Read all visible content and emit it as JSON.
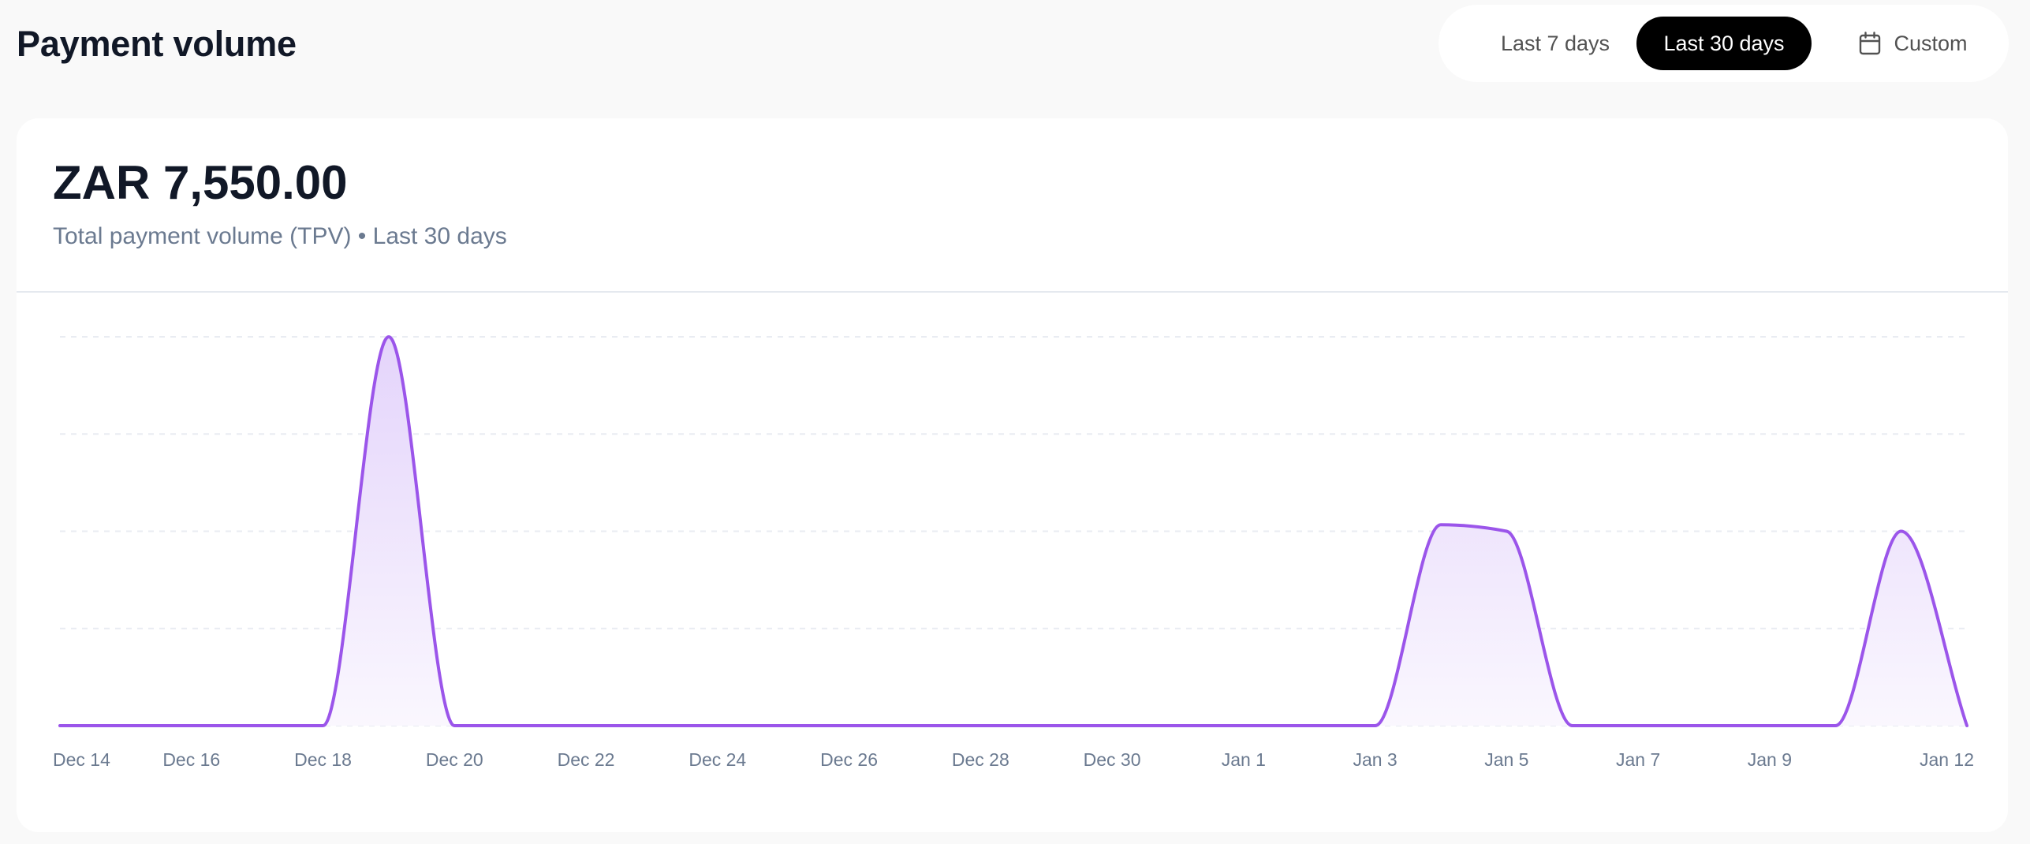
{
  "header": {
    "title": "Payment volume"
  },
  "range_switch": {
    "options": [
      {
        "label": "Last 7 days",
        "selected": false
      },
      {
        "label": "Last 30 days",
        "selected": true
      },
      {
        "label": "Custom",
        "selected": false,
        "icon": "calendar-icon"
      }
    ]
  },
  "summary": {
    "amount": "ZAR 7,550.00",
    "subtitle": "Total payment volume (TPV) • Last 30 days"
  },
  "colors": {
    "line": "#9b55ea",
    "fill_top": "#e4d4fb",
    "fill_bottom": "#faf7fe",
    "grid": "#e9ecf2",
    "tick_text": "#6b7a90",
    "selected_bg": "#000000"
  },
  "chart_data": {
    "type": "area",
    "title": "",
    "xlabel": "",
    "ylabel": "",
    "x": [
      "Dec 14",
      "Dec 15",
      "Dec 16",
      "Dec 17",
      "Dec 18",
      "Dec 19",
      "Dec 20",
      "Dec 21",
      "Dec 22",
      "Dec 23",
      "Dec 24",
      "Dec 25",
      "Dec 26",
      "Dec 27",
      "Dec 28",
      "Dec 29",
      "Dec 30",
      "Dec 31",
      "Jan 1",
      "Jan 2",
      "Jan 3",
      "Jan 4",
      "Jan 5",
      "Jan 6",
      "Jan 7",
      "Jan 8",
      "Jan 9",
      "Jan 10",
      "Jan 11",
      "Jan 12"
    ],
    "series": [
      {
        "name": "Payment volume (ZAR)",
        "values": [
          0,
          0,
          0,
          0,
          0,
          3000,
          0,
          0,
          0,
          0,
          0,
          0,
          0,
          0,
          0,
          0,
          0,
          0,
          0,
          0,
          0,
          1550,
          1500,
          0,
          0,
          0,
          0,
          0,
          1500,
          0
        ]
      }
    ],
    "tick_labels": [
      "Dec 14",
      "Dec 16",
      "Dec 18",
      "Dec 20",
      "Dec 22",
      "Dec 24",
      "Dec 26",
      "Dec 28",
      "Dec 30",
      "Jan 1",
      "Jan 3",
      "Jan 5",
      "Jan 7",
      "Jan 9",
      "Jan 12"
    ],
    "ylim": [
      0,
      3000
    ],
    "y_axis_visible": false,
    "grid": {
      "horizontal": true,
      "dashed": true,
      "lines": 5
    },
    "legend": "none",
    "total": 7550
  }
}
